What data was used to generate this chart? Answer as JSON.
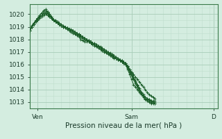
{
  "bg_color": "#d4ede0",
  "grid_color_major": "#a8ccb8",
  "grid_color_minor": "#c0dece",
  "line_color": "#1a5c28",
  "xlabel": "Pression niveau de la mer( hPa )",
  "xlabel_fontsize": 7.5,
  "tick_label_fontsize": 6.5,
  "ylim": [
    1012.5,
    1020.8
  ],
  "yticks": [
    1013,
    1014,
    1015,
    1016,
    1017,
    1018,
    1019,
    1020
  ],
  "xlim": [
    0,
    96
  ],
  "x_tick_positions": [
    4,
    52,
    94
  ],
  "x_labels": [
    "Ven",
    "Sam",
    "D"
  ],
  "series": [
    {
      "x": [
        0,
        1,
        2,
        3,
        4,
        5,
        6,
        7,
        8,
        9,
        10,
        11,
        12,
        13,
        14,
        15,
        16,
        17,
        18,
        19,
        20,
        21,
        22,
        23,
        24,
        25,
        26,
        27,
        28,
        29,
        30,
        31,
        32,
        33,
        34,
        35,
        36,
        37,
        38,
        39,
        40,
        41,
        42,
        43,
        44,
        45,
        46,
        47,
        48,
        49,
        50,
        51,
        52,
        53,
        54,
        55,
        56,
        57,
        58,
        59,
        60,
        61,
        62,
        63,
        64
      ],
      "y": [
        1018.7,
        1019.0,
        1019.2,
        1019.4,
        1019.6,
        1019.8,
        1019.9,
        1020.1,
        1020.2,
        1020.1,
        1020.0,
        1019.8,
        1019.6,
        1019.4,
        1019.3,
        1019.2,
        1019.1,
        1019.0,
        1019.0,
        1018.9,
        1018.8,
        1018.7,
        1018.6,
        1018.5,
        1018.4,
        1018.3,
        1018.2,
        1018.1,
        1018.0,
        1017.9,
        1017.8,
        1017.7,
        1017.6,
        1017.5,
        1017.4,
        1017.3,
        1017.2,
        1017.1,
        1017.0,
        1016.9,
        1016.8,
        1016.7,
        1016.6,
        1016.5,
        1016.5,
        1016.4,
        1016.3,
        1016.2,
        1016.1,
        1016.0,
        1015.8,
        1015.6,
        1015.4,
        1015.2,
        1015.0,
        1014.8,
        1014.6,
        1014.4,
        1014.2,
        1014.0,
        1013.8,
        1013.6,
        1013.5,
        1013.4,
        1013.3
      ]
    },
    {
      "x": [
        0,
        1,
        2,
        3,
        4,
        5,
        6,
        7,
        8,
        9,
        10,
        11,
        12,
        13,
        14,
        15,
        16,
        17,
        18,
        19,
        20,
        21,
        22,
        23,
        24,
        25,
        26,
        27,
        28,
        29,
        30,
        31,
        32,
        33,
        34,
        35,
        36,
        37,
        38,
        39,
        40,
        41,
        42,
        43,
        44,
        45,
        46,
        47,
        48,
        49,
        50,
        51,
        52,
        53,
        54,
        55,
        56,
        57,
        58,
        59,
        60,
        61,
        62,
        63,
        64
      ],
      "y": [
        1018.7,
        1019.1,
        1019.3,
        1019.5,
        1019.7,
        1019.9,
        1020.1,
        1020.3,
        1020.4,
        1020.2,
        1020.0,
        1019.8,
        1019.6,
        1019.5,
        1019.4,
        1019.3,
        1019.2,
        1019.1,
        1019.0,
        1018.9,
        1018.8,
        1018.7,
        1018.6,
        1018.5,
        1018.4,
        1018.3,
        1018.2,
        1018.1,
        1018.0,
        1017.9,
        1017.9,
        1017.8,
        1017.7,
        1017.6,
        1017.5,
        1017.4,
        1017.3,
        1017.2,
        1017.1,
        1017.0,
        1016.9,
        1016.8,
        1016.7,
        1016.6,
        1016.5,
        1016.4,
        1016.3,
        1016.2,
        1016.1,
        1016.0,
        1015.7,
        1015.4,
        1015.1,
        1014.8,
        1014.5,
        1014.2,
        1013.9,
        1013.6,
        1013.4,
        1013.2,
        1013.1,
        1013.0,
        1012.9,
        1012.9,
        1012.9
      ]
    },
    {
      "x": [
        0,
        1,
        2,
        3,
        4,
        5,
        6,
        7,
        8,
        9,
        10,
        11,
        12,
        13,
        14,
        15,
        16,
        17,
        18,
        19,
        20,
        21,
        22,
        23,
        24,
        25,
        26,
        27,
        28,
        29,
        30,
        31,
        32,
        33,
        34,
        35,
        36,
        37,
        38,
        39,
        40,
        41,
        42,
        43,
        44,
        45,
        46,
        47,
        48,
        49,
        50,
        51,
        52,
        53,
        54,
        55,
        56,
        57,
        58,
        59,
        60,
        61,
        62,
        63,
        64
      ],
      "y": [
        1018.7,
        1019.0,
        1019.2,
        1019.5,
        1019.7,
        1019.9,
        1020.1,
        1020.2,
        1020.3,
        1020.2,
        1019.9,
        1019.7,
        1019.5,
        1019.4,
        1019.3,
        1019.2,
        1019.1,
        1019.0,
        1018.9,
        1018.8,
        1018.7,
        1018.6,
        1018.5,
        1018.4,
        1018.3,
        1018.2,
        1018.0,
        1017.9,
        1017.8,
        1017.8,
        1017.8,
        1017.7,
        1017.7,
        1017.6,
        1017.5,
        1017.4,
        1017.3,
        1017.2,
        1017.1,
        1017.0,
        1016.9,
        1016.8,
        1016.7,
        1016.6,
        1016.5,
        1016.4,
        1016.3,
        1016.2,
        1016.1,
        1016.0,
        1015.6,
        1015.2,
        1014.8,
        1014.4,
        1014.2,
        1014.0,
        1013.8,
        1013.6,
        1013.5,
        1013.4,
        1013.3,
        1013.2,
        1013.1,
        1013.1,
        1013.1
      ]
    },
    {
      "x": [
        0,
        1,
        2,
        3,
        4,
        5,
        6,
        7,
        8,
        9,
        10,
        11,
        12,
        13,
        14,
        15,
        16,
        17,
        18,
        19,
        20,
        21,
        22,
        23,
        24,
        25,
        26,
        27,
        28,
        29,
        30,
        31,
        32,
        33,
        34,
        35,
        36,
        37,
        38,
        39,
        40,
        41,
        42,
        43,
        44,
        45,
        46,
        47,
        48,
        49,
        50,
        51,
        52,
        53,
        54,
        55,
        56,
        57,
        58,
        59,
        60,
        61,
        62,
        63,
        64
      ],
      "y": [
        1018.7,
        1019.0,
        1019.2,
        1019.4,
        1019.5,
        1019.7,
        1019.8,
        1019.9,
        1020.0,
        1019.9,
        1019.8,
        1019.7,
        1019.5,
        1019.4,
        1019.3,
        1019.2,
        1019.1,
        1019.0,
        1019.0,
        1018.9,
        1018.8,
        1018.8,
        1018.7,
        1018.6,
        1018.5,
        1018.4,
        1018.3,
        1018.2,
        1018.1,
        1018.0,
        1017.9,
        1017.8,
        1017.7,
        1017.6,
        1017.5,
        1017.4,
        1017.3,
        1017.2,
        1017.1,
        1017.0,
        1016.9,
        1016.8,
        1016.7,
        1016.6,
        1016.5,
        1016.4,
        1016.4,
        1016.3,
        1016.2,
        1016.1,
        1015.9,
        1015.6,
        1015.3,
        1015.0,
        1014.7,
        1014.4,
        1014.1,
        1013.8,
        1013.6,
        1013.4,
        1013.3,
        1013.2,
        1013.1,
        1013.0,
        1013.0
      ]
    },
    {
      "x": [
        0,
        1,
        2,
        3,
        4,
        5,
        6,
        7,
        8,
        9,
        10,
        11,
        12,
        13,
        14,
        15,
        16,
        17,
        18,
        19,
        20,
        21,
        22,
        23,
        24,
        25,
        26,
        27,
        28,
        29,
        30,
        31,
        32,
        33,
        34,
        35,
        36,
        37,
        38,
        39,
        40,
        41,
        42,
        43,
        44,
        45,
        46,
        47,
        48,
        49,
        50,
        51,
        52,
        53,
        54,
        55,
        56,
        57,
        58,
        59,
        60,
        61,
        62,
        63,
        64
      ],
      "y": [
        1018.7,
        1019.1,
        1019.3,
        1019.5,
        1019.6,
        1019.8,
        1019.9,
        1020.0,
        1020.1,
        1020.0,
        1019.9,
        1019.7,
        1019.5,
        1019.4,
        1019.3,
        1019.2,
        1019.1,
        1019.0,
        1019.0,
        1018.9,
        1018.8,
        1018.7,
        1018.7,
        1018.6,
        1018.5,
        1018.4,
        1018.3,
        1018.2,
        1018.1,
        1018.0,
        1017.9,
        1017.8,
        1017.7,
        1017.7,
        1017.6,
        1017.5,
        1017.4,
        1017.3,
        1017.2,
        1017.1,
        1017.0,
        1016.9,
        1016.8,
        1016.7,
        1016.6,
        1016.5,
        1016.4,
        1016.3,
        1016.2,
        1016.1,
        1015.8,
        1015.5,
        1015.2,
        1014.9,
        1014.6,
        1014.3,
        1014.0,
        1013.7,
        1013.5,
        1013.3,
        1013.2,
        1013.1,
        1013.0,
        1013.0,
        1012.9
      ]
    }
  ]
}
